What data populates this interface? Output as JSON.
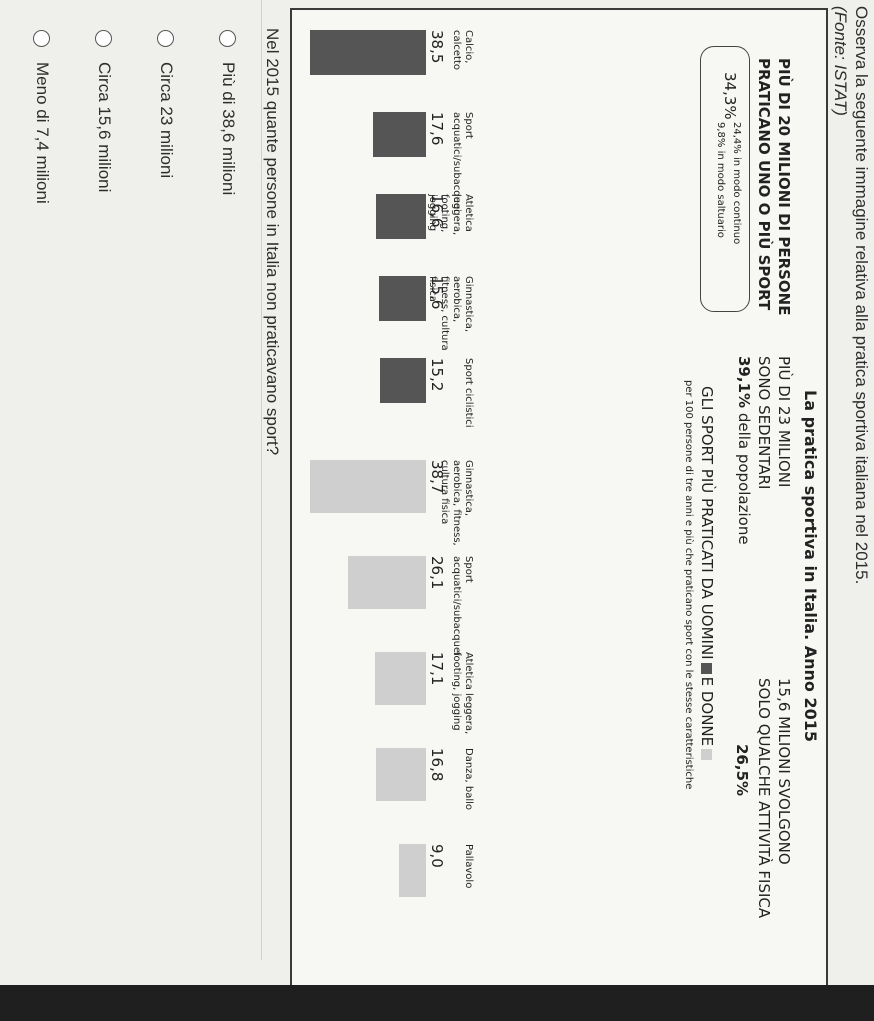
{
  "intro_text": "Osserva la seguente immagine relativa alla pratica sportiva italiana nel 2015.",
  "source_text": "(Fonte: ISTAT)",
  "infographic": {
    "title": "La pratica sportiva in Italia. Anno 2015",
    "headline_left": [
      "PIÙ DI 20 MILIONI DI PERSONE",
      "PRATICANO UNO O PIÙ SPORT"
    ],
    "headline_mid_1": "PIÙ DI 23 MILIONI",
    "headline_mid_2": "SONO SEDENTARI",
    "headline_mid_pct": "39,1%",
    "headline_mid_pct_suffix": " della popolazione",
    "headline_right": [
      "15,6 MILIONI SVOLGONO",
      "SOLO QUALCHE ATTIVITÀ FISICA"
    ],
    "headline_right_pct": "26,5%",
    "pill_pct": "34,3%",
    "pill_line1": "24,4% in modo continuo",
    "pill_line2": "9,8% in modo saltuario",
    "section_title_prefix": "GLI SPORT PIÙ PRATICATI DA UOMINI",
    "section_title_mid": "E DONNE",
    "section_subtitle": "per 100 persone di tre anni e più che praticano sport con le stesse caratteristiche"
  },
  "chart_data": [
    {
      "type": "bar",
      "series": [
        {
          "name": "UOMINI",
          "color": "#555555"
        }
      ],
      "categories": [
        "Calcio, calcetto",
        "Sport acquatici/subacquei",
        "Atletica leggera, footing, jogging",
        "Ginnastica, aerobica, fitness, cultura fisica",
        "Sport ciclistici"
      ],
      "values": [
        38.5,
        17.6,
        16.6,
        15.6,
        15.2
      ],
      "value_labels": [
        "38,5",
        "17,6",
        "16,6",
        "15,6",
        "15,2"
      ]
    },
    {
      "type": "bar",
      "series": [
        {
          "name": "DONNE",
          "color": "#cfcfcf"
        }
      ],
      "categories": [
        "Ginnastica, aerobica, fitness, cultura fisica",
        "Sport acquatici/subacquei",
        "Atletica leggera, footing, jogging",
        "Danza, ballo",
        "Pallavolo"
      ],
      "values": [
        38.7,
        26.1,
        17.1,
        16.8,
        9.0
      ],
      "value_labels": [
        "38,7",
        "26,1",
        "17,1",
        "16,8",
        "9,0"
      ]
    }
  ],
  "question": "Nel 2015 quante persone in Italia non praticavano sport?",
  "options": [
    "Più di 38,6 milioni",
    "Circa 23 milioni",
    "Circa 15,6 milioni",
    "Meno di 7,4 milioni"
  ]
}
